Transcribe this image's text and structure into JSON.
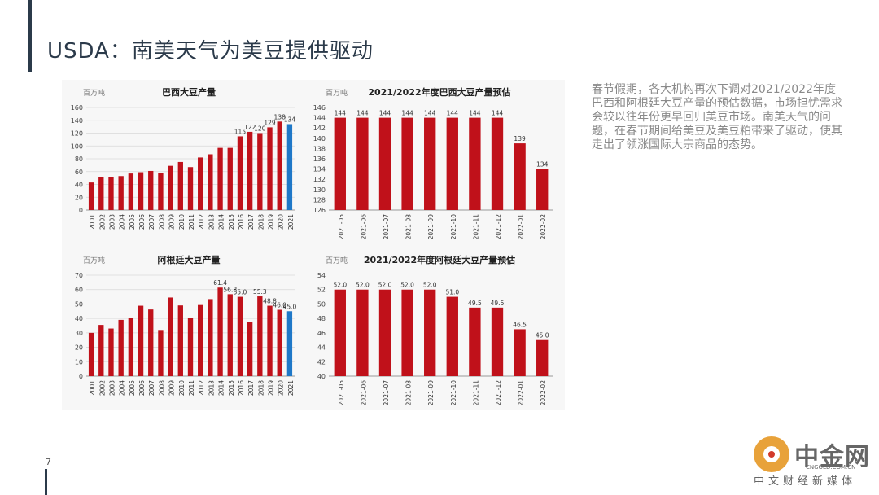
{
  "slide": {
    "title": "USDA：南美天气为美豆提供驱动",
    "page_number": "7",
    "body_text": "春节假期，各大机构再次下调对2021/2022年度巴西和阿根廷大豆产量的预估数据，市场担忧需求会较以往年份更早回归美豆市场。南美天气的问题，在春节期间给美豆及美豆粕带来了驱动，使其走出了领涨国际大宗商品的态势。"
  },
  "watermark": {
    "brand": "中金网",
    "site": "CNGOLD.COM.CN",
    "caption": "中文财经新媒体"
  },
  "colors": {
    "bar_red": "#c0111a",
    "bar_blue": "#1f78c8",
    "text_dark": "#2b3a4a",
    "text_gray": "#8a8a8a"
  },
  "chart_data": [
    {
      "type": "bar",
      "title": "巴西大豆产量",
      "unit": "百万吨",
      "categories": [
        "2001",
        "2002",
        "2003",
        "2004",
        "2005",
        "2006",
        "2007",
        "2008",
        "2009",
        "2010",
        "2011",
        "2012",
        "2013",
        "2014",
        "2015",
        "2016",
        "2017",
        "2018",
        "2019",
        "2020",
        "2021"
      ],
      "values": [
        43,
        52,
        52,
        53,
        57,
        59,
        61,
        58,
        69,
        75,
        67,
        82,
        87,
        97,
        97,
        115,
        122,
        120,
        129,
        138,
        134
      ],
      "data_labels": {
        "15": "115",
        "16": "122",
        "17": "120",
        "18": "129",
        "19": "138",
        "20": "134"
      },
      "highlight_index": 20,
      "ylim": [
        0,
        160
      ],
      "yticks": [
        0,
        20,
        40,
        60,
        80,
        100,
        120,
        140,
        160
      ],
      "grid": true
    },
    {
      "type": "bar",
      "title": "2021/2022年度巴西大豆产量预估",
      "unit": "百万吨",
      "categories": [
        "2021-05",
        "2021-06",
        "2021-07",
        "2021-08",
        "2021-09",
        "2021-10",
        "2021-11",
        "2021-12",
        "2022-01",
        "2022-02"
      ],
      "values": [
        144,
        144,
        144,
        144,
        144,
        144,
        144,
        144,
        139,
        134
      ],
      "data_labels": {
        "0": "144",
        "1": "144",
        "2": "144",
        "3": "144",
        "4": "144",
        "5": "144",
        "6": "144",
        "7": "144",
        "8": "139",
        "9": "134"
      },
      "ylim": [
        126,
        146
      ],
      "yticks": [
        126,
        128,
        130,
        132,
        134,
        136,
        138,
        140,
        142,
        144,
        146
      ],
      "grid": false
    },
    {
      "type": "bar",
      "title": "阿根廷大豆产量",
      "unit": "百万吨",
      "categories": [
        "2001",
        "2002",
        "2003",
        "2004",
        "2005",
        "2006",
        "2007",
        "2008",
        "2009",
        "2010",
        "2011",
        "2012",
        "2013",
        "2014",
        "2015",
        "2016",
        "2017",
        "2018",
        "2019",
        "2020",
        "2021"
      ],
      "values": [
        30,
        35.5,
        33,
        39,
        40.5,
        48.8,
        46.2,
        32,
        54.5,
        49,
        40.1,
        49.3,
        53.4,
        61.4,
        56.8,
        55,
        37.8,
        55.3,
        48.8,
        46,
        45
      ],
      "data_labels": {
        "13": "61.4",
        "14": "56.8",
        "15": "55.0",
        "17": "55.3",
        "18": "48.8",
        "19": "46.0",
        "20": "45.0"
      },
      "highlight_index": 20,
      "ylim": [
        0,
        70
      ],
      "yticks": [
        0,
        10,
        20,
        30,
        40,
        50,
        60,
        70
      ],
      "grid": true
    },
    {
      "type": "bar",
      "title": "2021/2022年度阿根廷大豆产量预估",
      "unit": "百万吨",
      "categories": [
        "2021-05",
        "2021-06",
        "2021-07",
        "2021-08",
        "2021-09",
        "2021-10",
        "2021-11",
        "2021-12",
        "2022-01",
        "2022-02"
      ],
      "values": [
        52,
        52,
        52,
        52,
        52,
        51,
        49.5,
        49.5,
        46.5,
        45
      ],
      "data_labels": {
        "0": "52.0",
        "1": "52.0",
        "2": "52.0",
        "3": "52.0",
        "4": "52.0",
        "5": "51.0",
        "6": "49.5",
        "7": "49.5",
        "8": "46.5",
        "9": "45.0"
      },
      "ylim": [
        40,
        54
      ],
      "yticks": [
        40,
        42,
        44,
        46,
        48,
        50,
        52,
        54
      ],
      "grid": false
    }
  ]
}
